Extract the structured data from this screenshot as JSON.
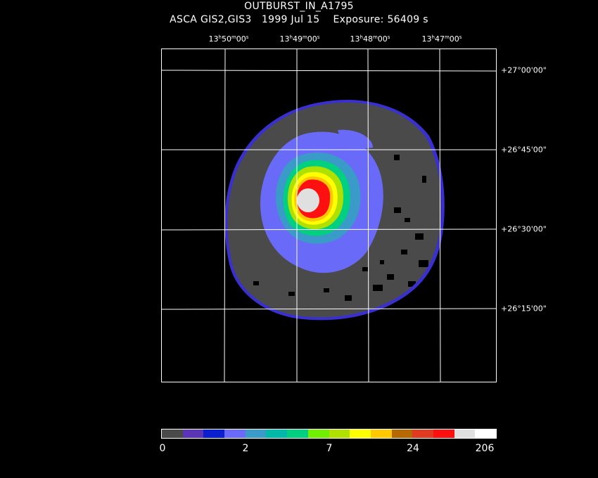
{
  "title": "OUTBURST_IN_A1795",
  "subtitle": {
    "instrument": "ASCA GIS2,GIS3",
    "date": "1999 Jul 15",
    "exposure": "Exposure: 56409 s"
  },
  "ra_labels": [
    {
      "h": "13",
      "m": "50",
      "s": "00"
    },
    {
      "h": "13",
      "m": "49",
      "s": "00"
    },
    {
      "h": "13",
      "m": "48",
      "s": "00"
    },
    {
      "h": "13",
      "m": "47",
      "s": "00"
    }
  ],
  "dec_labels": [
    {
      "d": "+27",
      "m": "00",
      "s": "00"
    },
    {
      "d": "+26",
      "m": "45",
      "s": "00"
    },
    {
      "d": "+26",
      "m": "30",
      "s": "00"
    },
    {
      "d": "+26",
      "m": "15",
      "s": "00"
    }
  ],
  "colorbar": {
    "colors": [
      "#4a4a4a",
      "#5a35b5",
      "#0a1fd0",
      "#6a6af8",
      "#3a9ac8",
      "#00b9a8",
      "#00d080",
      "#70f000",
      "#b0e000",
      "#ffff00",
      "#ffc800",
      "#b86800",
      "#e03a20",
      "#ff1010",
      "#e0e0e0",
      "#ffffff"
    ],
    "labels": [
      "0",
      "2",
      "7",
      "24",
      "206"
    ]
  }
}
